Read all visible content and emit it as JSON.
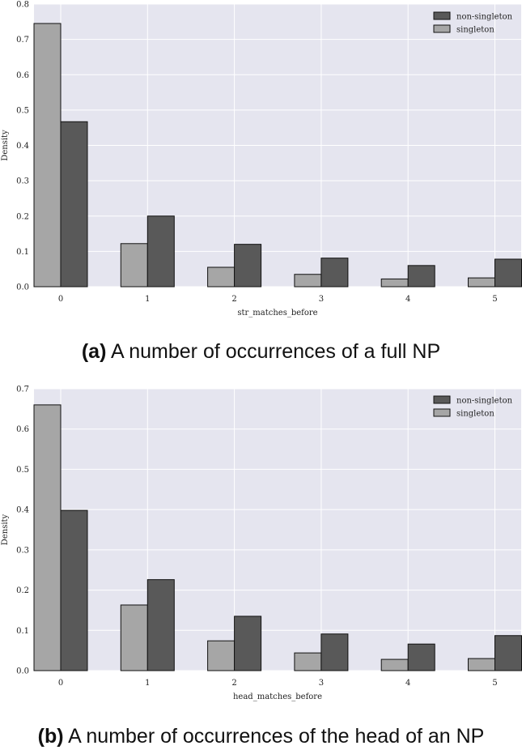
{
  "chart_data": [
    {
      "type": "bar",
      "xlabel": "str_matches_before",
      "ylabel": "Density",
      "categories": [
        "0",
        "1",
        "2",
        "3",
        "4",
        "5"
      ],
      "ylim": [
        0,
        0.8
      ],
      "yticks": [
        "0.0",
        "0.1",
        "0.2",
        "0.3",
        "0.4",
        "0.5",
        "0.6",
        "0.7",
        "0.8"
      ],
      "grid": true,
      "legend_position": "top-right",
      "series": [
        {
          "name": "singleton",
          "color": "#a6a6a6",
          "values": [
            0.745,
            0.122,
            0.055,
            0.035,
            0.022,
            0.025
          ]
        },
        {
          "name": "non-singleton",
          "color": "#595959",
          "values": [
            0.467,
            0.2,
            0.12,
            0.081,
            0.06,
            0.078
          ]
        }
      ],
      "legend_order": [
        "non-singleton",
        "singleton"
      ],
      "caption_label": "(a)",
      "caption_text": " A number of occurrences of a full NP"
    },
    {
      "type": "bar",
      "xlabel": "head_matches_before",
      "ylabel": "Density",
      "categories": [
        "0",
        "1",
        "2",
        "3",
        "4",
        "5"
      ],
      "ylim": [
        0,
        0.7
      ],
      "yticks": [
        "0.0",
        "0.1",
        "0.2",
        "0.3",
        "0.4",
        "0.5",
        "0.6",
        "0.7"
      ],
      "grid": true,
      "legend_position": "top-right",
      "series": [
        {
          "name": "singleton",
          "color": "#a6a6a6",
          "values": [
            0.66,
            0.163,
            0.074,
            0.044,
            0.028,
            0.03
          ]
        },
        {
          "name": "non-singleton",
          "color": "#595959",
          "values": [
            0.398,
            0.226,
            0.135,
            0.091,
            0.066,
            0.087
          ]
        }
      ],
      "legend_order": [
        "non-singleton",
        "singleton"
      ],
      "caption_label": "(b)",
      "caption_text": " A number of occurrences of the head of an NP"
    }
  ]
}
